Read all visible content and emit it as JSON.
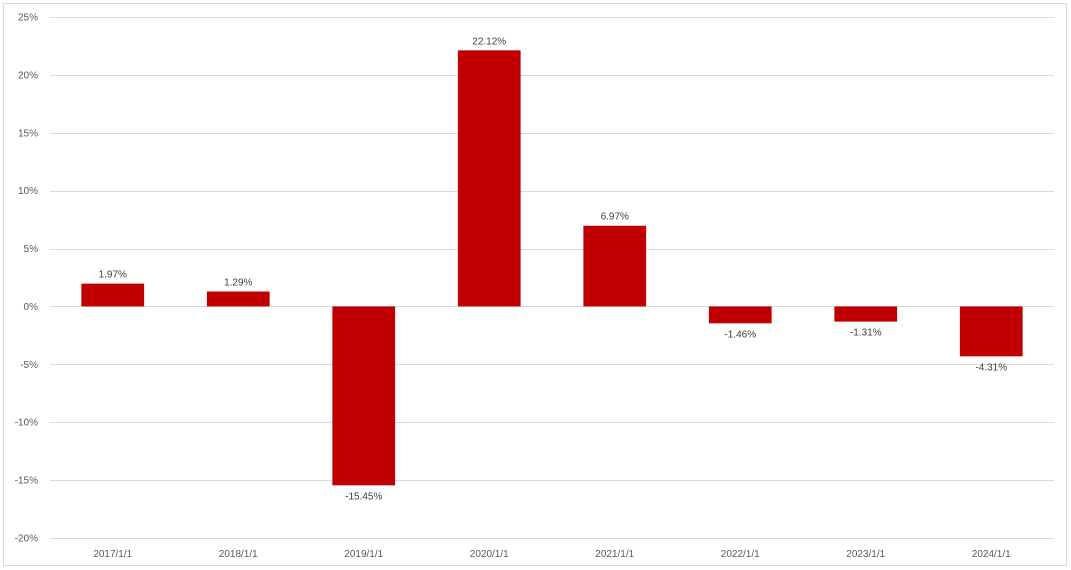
{
  "chart_data": {
    "type": "bar",
    "categories": [
      "2017/1/1",
      "2018/1/1",
      "2019/1/1",
      "2020/1/1",
      "2021/1/1",
      "2022/1/1",
      "2023/1/1",
      "2024/1/1"
    ],
    "values": [
      1.97,
      1.29,
      -15.45,
      22.12,
      6.97,
      -1.46,
      -1.31,
      -4.31
    ],
    "data_labels": [
      "1.97%",
      "1.29%",
      "-15.45%",
      "22.12%",
      "6.97%",
      "-1.46%",
      "-1.31%",
      "-4.31%"
    ],
    "y_ticks": [
      25,
      20,
      15,
      10,
      5,
      0,
      -5,
      -10,
      -15,
      -20
    ],
    "y_tick_labels": [
      "25%",
      "20%",
      "15%",
      "10%",
      "5%",
      "0%",
      "-5%",
      "-10%",
      "-15%",
      "-20%"
    ],
    "ylim": [
      -20,
      25
    ],
    "title": "",
    "xlabel": "",
    "ylabel": "",
    "grid": true,
    "legend": "none",
    "bar_color": "#c00000",
    "gridline_color": "#d9d9d9"
  }
}
